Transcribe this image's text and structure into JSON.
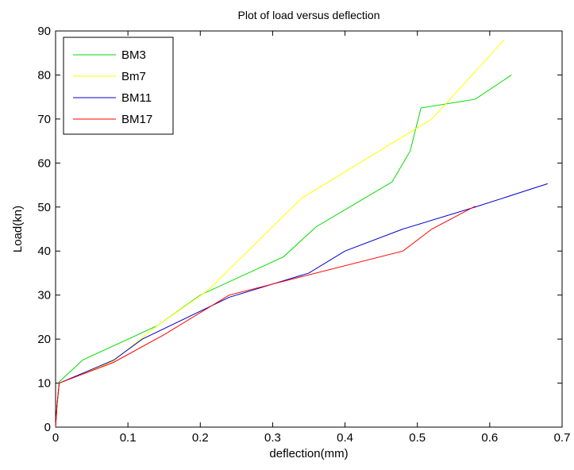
{
  "chart_data": {
    "type": "line",
    "title": "Plot of load versus deflection",
    "xlabel": "deflection(mm)",
    "ylabel": "Load(kn)",
    "xlim": [
      0,
      0.7
    ],
    "ylim": [
      0,
      90
    ],
    "xticks": [
      0,
      0.1,
      0.2,
      0.3,
      0.4,
      0.5,
      0.6,
      0.7
    ],
    "xtick_labels": [
      "0",
      "0.1",
      "0.2",
      "0.3",
      "0.4",
      "0.5",
      "0.6",
      "0.7"
    ],
    "yticks": [
      0,
      10,
      20,
      30,
      40,
      50,
      60,
      70,
      80,
      90
    ],
    "ytick_labels": [
      "0",
      "10",
      "20",
      "30",
      "40",
      "50",
      "60",
      "70",
      "80",
      "90"
    ],
    "grid": false,
    "legend_position": "top-left",
    "series": [
      {
        "name": "BM3",
        "color": "#00dd00",
        "x": [
          0,
          0.002,
          0.005,
          0.038,
          0.14,
          0.2,
          0.315,
          0.36,
          0.465,
          0.49,
          0.505,
          0.58,
          0.63
        ],
        "y": [
          0,
          5,
          10.3,
          15.3,
          23,
          30,
          38.7,
          45.5,
          55.7,
          62.7,
          72.5,
          74.5,
          80
        ]
      },
      {
        "name": "Bm7",
        "color": "#ffff00",
        "x": [
          0,
          0.002,
          0.005,
          0.08,
          0.14,
          0.21,
          0.34,
          0.52,
          0.62
        ],
        "y": [
          0,
          5,
          10,
          15,
          23,
          31,
          52,
          70,
          88
        ]
      },
      {
        "name": "BM11",
        "color": "#0000cc",
        "x": [
          0,
          0.002,
          0.005,
          0.08,
          0.12,
          0.24,
          0.35,
          0.4,
          0.48,
          0.58,
          0.68
        ],
        "y": [
          0,
          5,
          10,
          15.2,
          20,
          29.5,
          35,
          40,
          45,
          50,
          55.3
        ]
      },
      {
        "name": "BM17",
        "color": "#ff0000",
        "x": [
          0,
          0.002,
          0.005,
          0.08,
          0.15,
          0.24,
          0.48,
          0.52,
          0.58
        ],
        "y": [
          0,
          5,
          10,
          14.7,
          21,
          30,
          40,
          45,
          50.2
        ]
      }
    ]
  }
}
